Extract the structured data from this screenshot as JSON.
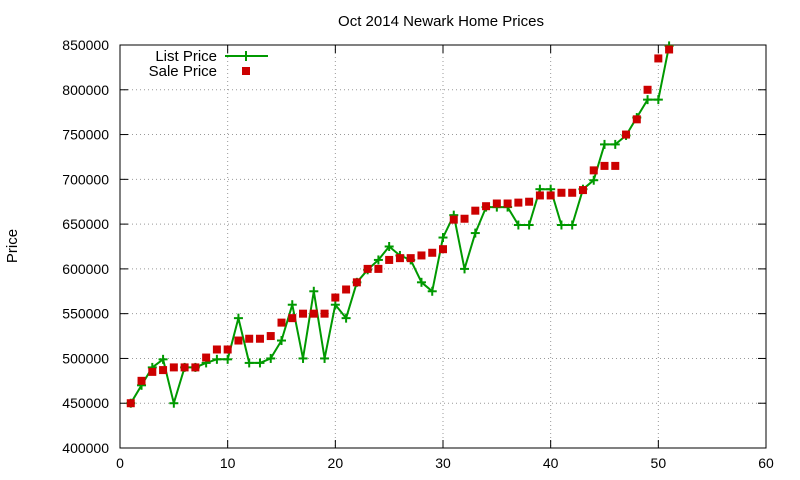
{
  "chart_data": {
    "type": "line",
    "title": "Oct 2014 Newark Home Prices",
    "xlabel": "",
    "ylabel": "Price",
    "xlim": [
      0,
      60
    ],
    "ylim": [
      400000,
      850000
    ],
    "xticks": [
      0,
      10,
      20,
      30,
      40,
      50,
      60
    ],
    "yticks": [
      400000,
      450000,
      500000,
      550000,
      600000,
      650000,
      700000,
      750000,
      800000,
      850000
    ],
    "grid": true,
    "legend_position": "top-left",
    "series": [
      {
        "name": "List Price",
        "marker": "plus",
        "color": "#009900",
        "x": [
          1,
          2,
          3,
          4,
          5,
          6,
          7,
          8,
          9,
          10,
          11,
          12,
          13,
          14,
          15,
          16,
          17,
          18,
          19,
          20,
          21,
          22,
          23,
          24,
          25,
          26,
          27,
          28,
          29,
          30,
          31,
          32,
          33,
          34,
          35,
          36,
          37,
          38,
          39,
          40,
          41,
          42,
          43,
          44,
          45,
          46,
          47,
          48,
          49,
          50,
          51
        ],
        "y": [
          450000,
          470000,
          490000,
          499000,
          450000,
          490000,
          490000,
          495000,
          499000,
          499000,
          545000,
          495000,
          495000,
          500000,
          520000,
          560000,
          500000,
          575000,
          500000,
          560000,
          545000,
          585000,
          599000,
          610000,
          625000,
          615000,
          610000,
          585000,
          575000,
          635000,
          660000,
          600000,
          640000,
          669000,
          669000,
          669000,
          649000,
          649000,
          689000,
          689000,
          649000,
          649000,
          689000,
          699000,
          739000,
          739000,
          749000,
          769000,
          789000,
          789000,
          849000
        ]
      },
      {
        "name": "Sale Price",
        "marker": "square",
        "color": "#cc0000",
        "x": [
          1,
          2,
          3,
          4,
          5,
          6,
          7,
          8,
          9,
          10,
          11,
          12,
          13,
          14,
          15,
          16,
          17,
          18,
          19,
          20,
          21,
          22,
          23,
          24,
          25,
          26,
          27,
          28,
          29,
          30,
          31,
          32,
          33,
          34,
          35,
          36,
          37,
          38,
          39,
          40,
          41,
          42,
          43,
          44,
          45,
          46,
          47,
          48,
          49,
          50,
          51
        ],
        "y": [
          450000,
          475000,
          485000,
          487000,
          490000,
          490000,
          490000,
          501000,
          510000,
          510000,
          520000,
          522000,
          522000,
          525000,
          540000,
          545000,
          550000,
          550000,
          550000,
          568000,
          577000,
          585000,
          600000,
          600000,
          610000,
          612000,
          612000,
          615000,
          618000,
          622000,
          655000,
          656000,
          665000,
          670000,
          673000,
          673000,
          674000,
          675000,
          682000,
          682000,
          685000,
          685000,
          688000,
          710000,
          715000,
          715000,
          750000,
          767000,
          800000,
          835000,
          845000
        ]
      }
    ]
  }
}
